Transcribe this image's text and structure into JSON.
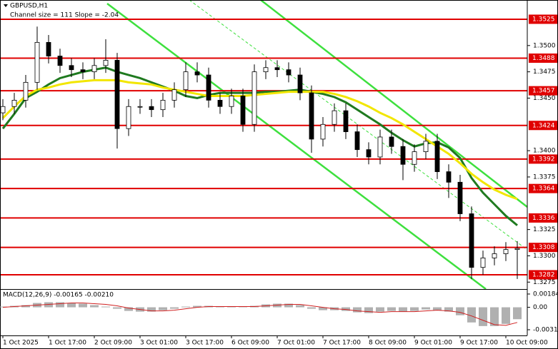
{
  "chart_data": {
    "type": "candlestick",
    "title": "GBPUSD,H1",
    "subtitle": "Channel size = 111  Slope = -2.04",
    "categories": [
      "1 Oct 2025",
      null,
      null,
      null,
      "1 Oct 17:00",
      null,
      null,
      null,
      "2 Oct 09:00",
      null,
      null,
      null,
      "3 Oct 01:00",
      null,
      null,
      null,
      "3 Oct 17:00",
      null,
      null,
      null,
      "6 Oct 09:00",
      null,
      null,
      null,
      "7 Oct 01:00",
      null,
      null,
      null,
      "7 Oct 17:00",
      null,
      null,
      null,
      "8 Oct 09:00",
      null,
      null,
      null,
      "9 Oct 01:00",
      null,
      null,
      null,
      "9 Oct 17:00",
      null,
      null,
      null,
      "10 Oct 09:00",
      null
    ],
    "open": [
      1.3436,
      1.3442,
      1.3448,
      1.3465,
      1.3503,
      1.349,
      1.3481,
      1.3477,
      1.3475,
      1.3481,
      1.3486,
      1.3421,
      1.3442,
      1.3442,
      1.3439,
      1.3448,
      1.3458,
      1.3475,
      1.3472,
      1.3448,
      1.3442,
      1.3452,
      1.3425,
      1.3475,
      1.3479,
      1.3477,
      1.3472,
      1.3455,
      1.3411,
      1.3425,
      1.3438,
      1.3418,
      1.3401,
      1.3394,
      1.3413,
      1.3404,
      1.3387,
      1.3399,
      1.3409,
      1.338,
      1.337,
      1.334,
      1.3289,
      1.3298,
      1.3302,
      1.3306
    ],
    "high": [
      1.3449,
      1.3455,
      1.3472,
      1.3518,
      1.351,
      1.3497,
      1.3488,
      1.3484,
      1.3488,
      1.3506,
      1.3493,
      1.3449,
      1.3449,
      1.3449,
      1.3455,
      1.3465,
      1.3484,
      1.3484,
      1.3479,
      1.3455,
      1.3459,
      1.3459,
      1.3482,
      1.3486,
      1.3486,
      1.3484,
      1.3479,
      1.3462,
      1.3432,
      1.3445,
      1.3445,
      1.3425,
      1.3408,
      1.342,
      1.342,
      1.3411,
      1.3406,
      1.3416,
      1.3416,
      1.3387,
      1.3377,
      1.3347,
      1.3305,
      1.3309,
      1.3313,
      1.3314
    ],
    "low": [
      1.3429,
      1.3435,
      1.3441,
      1.3458,
      1.3483,
      1.3474,
      1.347,
      1.3468,
      1.3468,
      1.3474,
      1.3402,
      1.3414,
      1.3435,
      1.3432,
      1.3432,
      1.3441,
      1.3451,
      1.3465,
      1.3441,
      1.3435,
      1.3435,
      1.3418,
      1.3418,
      1.3468,
      1.347,
      1.3465,
      1.3448,
      1.3398,
      1.3404,
      1.3418,
      1.3411,
      1.3394,
      1.3387,
      1.3387,
      1.3397,
      1.3372,
      1.338,
      1.3392,
      1.3373,
      1.3355,
      1.3333,
      1.3278,
      1.3282,
      1.3291,
      1.3295,
      1.3278
    ],
    "close": [
      1.3442,
      1.3448,
      1.3465,
      1.3503,
      1.349,
      1.3481,
      1.3477,
      1.3475,
      1.3481,
      1.3486,
      1.3421,
      1.3442,
      1.3442,
      1.3439,
      1.3448,
      1.3458,
      1.3475,
      1.3472,
      1.3448,
      1.3442,
      1.3452,
      1.3425,
      1.3475,
      1.3479,
      1.3477,
      1.3472,
      1.3455,
      1.3411,
      1.3425,
      1.3438,
      1.3418,
      1.3401,
      1.3394,
      1.3413,
      1.3404,
      1.3387,
      1.3399,
      1.3409,
      1.338,
      1.337,
      1.334,
      1.3289,
      1.3298,
      1.3302,
      1.3306,
      1.3307
    ],
    "series": [
      {
        "color": "#1f7a1f",
        "values": [
          1.3421,
          1.3435,
          1.345,
          1.3456,
          1.3463,
          1.3469,
          1.3472,
          1.3475,
          1.3477,
          1.3479,
          1.3475,
          1.3472,
          1.3469,
          1.3465,
          1.3461,
          1.3457,
          1.3452,
          1.345,
          1.3453,
          1.3455,
          1.3455,
          1.3455,
          1.3455,
          1.3456,
          1.3456,
          1.3457,
          1.3458,
          1.3456,
          1.3454,
          1.3451,
          1.3446,
          1.3439,
          1.3432,
          1.3425,
          1.3417,
          1.341,
          1.3404,
          1.3407,
          1.3408,
          1.3403,
          1.3393,
          1.3374,
          1.336,
          1.3349,
          1.3338,
          1.3329
        ]
      },
      {
        "color": "#f2e600",
        "values": [
          1.3431,
          1.3442,
          1.3452,
          1.3458,
          1.346,
          1.3463,
          1.3465,
          1.3466,
          1.3467,
          1.3467,
          1.3467,
          1.3465,
          1.3464,
          1.3463,
          1.346,
          1.3458,
          1.3456,
          1.3454,
          1.3452,
          1.3452,
          1.3452,
          1.3452,
          1.3453,
          1.3454,
          1.3455,
          1.3456,
          1.3456,
          1.3456,
          1.3456,
          1.3454,
          1.3451,
          1.3447,
          1.3442,
          1.3436,
          1.3431,
          1.3425,
          1.3418,
          1.3411,
          1.3404,
          1.3397,
          1.3388,
          1.3378,
          1.337,
          1.3363,
          1.3358,
          1.3354
        ]
      }
    ],
    "levels": [
      {
        "value": 1.3525,
        "label": "1.3525"
      },
      {
        "value": 1.3488,
        "label": "1.3488"
      },
      {
        "value": 1.3457,
        "label": "1.3457"
      },
      {
        "value": 1.3424,
        "label": "1.3424"
      },
      {
        "value": 1.3392,
        "label": "1.3392"
      },
      {
        "value": 1.3364,
        "label": "1.3364"
      },
      {
        "value": 1.3336,
        "label": "1.3336"
      },
      {
        "value": 1.3308,
        "label": "1.3308"
      },
      {
        "value": 1.3282,
        "label": "1.3282"
      }
    ],
    "level_color": "#e00000",
    "ylim": [
      1.32684,
      1.35433
    ],
    "yticks": [
      {
        "value": 1.35,
        "label": "1.3500"
      },
      {
        "value": 1.3475,
        "label": "1.3475"
      },
      {
        "value": 1.345,
        "label": "1.3450"
      },
      {
        "value": 1.34,
        "label": "1.3400"
      },
      {
        "value": 1.3375,
        "label": "1.3375"
      },
      {
        "value": 1.3325,
        "label": "1.3325"
      },
      {
        "value": 1.33,
        "label": "1.3300"
      },
      {
        "value": 1.3275,
        "label": "1.3275"
      }
    ],
    "indicator": {
      "type": "macd",
      "label": "MACD(12,26,9) -0.00165 -0.00210",
      "values": [
        0.0001,
        0.0002,
        0.0003,
        0.0006,
        0.0007,
        0.0007,
        0.0006,
        0.0005,
        0.0003,
        0.0001,
        -0.0002,
        -0.0005,
        -0.0006,
        -0.0006,
        -0.0004,
        -0.0002,
        0.0001,
        0.0002,
        0.0002,
        0.0001,
        0.0001,
        0.0,
        0.0002,
        0.0004,
        0.0005,
        0.0005,
        0.0003,
        -0.0002,
        -0.0004,
        -0.0004,
        -0.0005,
        -0.0007,
        -0.0008,
        -0.0006,
        -0.0005,
        -0.0006,
        -0.0005,
        -0.0003,
        -0.0004,
        -0.0006,
        -0.0011,
        -0.0021,
        -0.0026,
        -0.0026,
        -0.0023,
        -0.00165
      ],
      "signal": [
        0.0,
        0.0001,
        0.0002,
        0.0003,
        0.0004,
        0.0005,
        0.0006,
        0.0006,
        0.0005,
        0.0004,
        0.0002,
        -0.0001,
        -0.0003,
        -0.0005,
        -0.0005,
        -0.0004,
        -0.0002,
        0.0,
        0.0001,
        0.0001,
        0.0001,
        0.0001,
        0.0001,
        0.0002,
        0.0003,
        0.0004,
        0.0004,
        0.0002,
        0.0,
        -0.0002,
        -0.0003,
        -0.0005,
        -0.0006,
        -0.0007,
        -0.0006,
        -0.0006,
        -0.0006,
        -0.0005,
        -0.0004,
        -0.0005,
        -0.0007,
        -0.0012,
        -0.0018,
        -0.0024,
        -0.0025,
        -0.0021
      ],
      "color": "#b0b0b0",
      "signal_color": "#d02020",
      "ylim": [
        -0.0039,
        0.00243
      ],
      "yticks": [
        0.00184,
        {
          "value": 0,
          "label": "0.00"
        },
        -0.00311
      ]
    }
  }
}
